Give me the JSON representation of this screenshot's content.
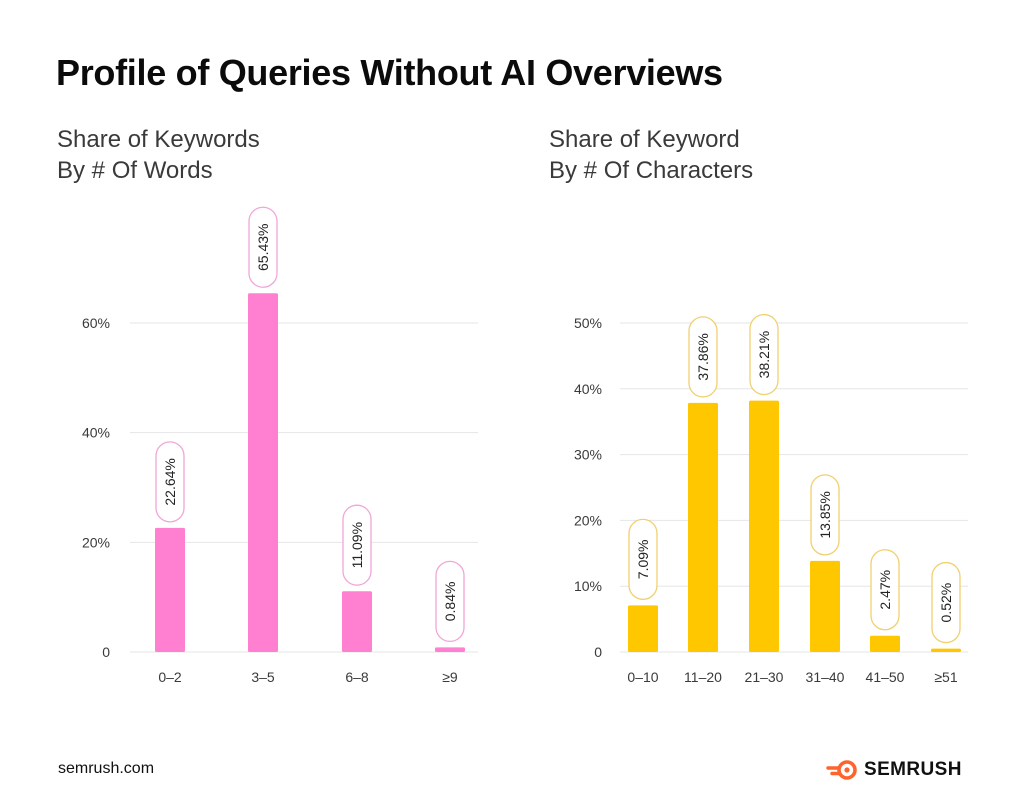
{
  "title": "Profile of Queries Without AI Overviews",
  "colors": {
    "pink": "#ff80d0",
    "yellow": "#ffc700",
    "grid": "#e6e6e6",
    "axis_text": "#3a3a3a"
  },
  "chart_data": [
    {
      "type": "bar",
      "title_lines": [
        "Share of Keywords",
        "By # Of Words"
      ],
      "categories": [
        "0–2",
        "3–5",
        "6–8",
        "≥9"
      ],
      "values": [
        22.64,
        65.43,
        11.09,
        0.84
      ],
      "value_labels": [
        "22.64%",
        "65.43%",
        "11.09%",
        "0.84%"
      ],
      "yticks": [
        0,
        20,
        40,
        60
      ],
      "ytick_labels": [
        "0",
        "20%",
        "40%",
        "60%"
      ],
      "ylim": [
        0,
        60
      ],
      "grid": true,
      "color": "#ff80d0",
      "label_border": "#f2a6d8"
    },
    {
      "type": "bar",
      "title_lines": [
        "Share of Keyword",
        "By # Of Characters"
      ],
      "categories": [
        "0–10",
        "11–20",
        "21–30",
        "31–40",
        "41–50",
        "≥51"
      ],
      "values": [
        7.09,
        37.86,
        38.21,
        13.85,
        2.47,
        0.52
      ],
      "value_labels": [
        "7.09%",
        "37.86%",
        "38.21%",
        "13.85%",
        "2.47%",
        "0.52%"
      ],
      "yticks": [
        0,
        10,
        20,
        30,
        40,
        50
      ],
      "ytick_labels": [
        "0",
        "10%",
        "20%",
        "30%",
        "40%",
        "50%"
      ],
      "ylim": [
        0,
        50
      ],
      "grid": true,
      "color": "#ffc700",
      "label_border": "#f0d070"
    }
  ],
  "footer": {
    "url": "semrush.com",
    "brand": "SEMRUSH",
    "logo_icon": "semrush-flame-icon"
  }
}
